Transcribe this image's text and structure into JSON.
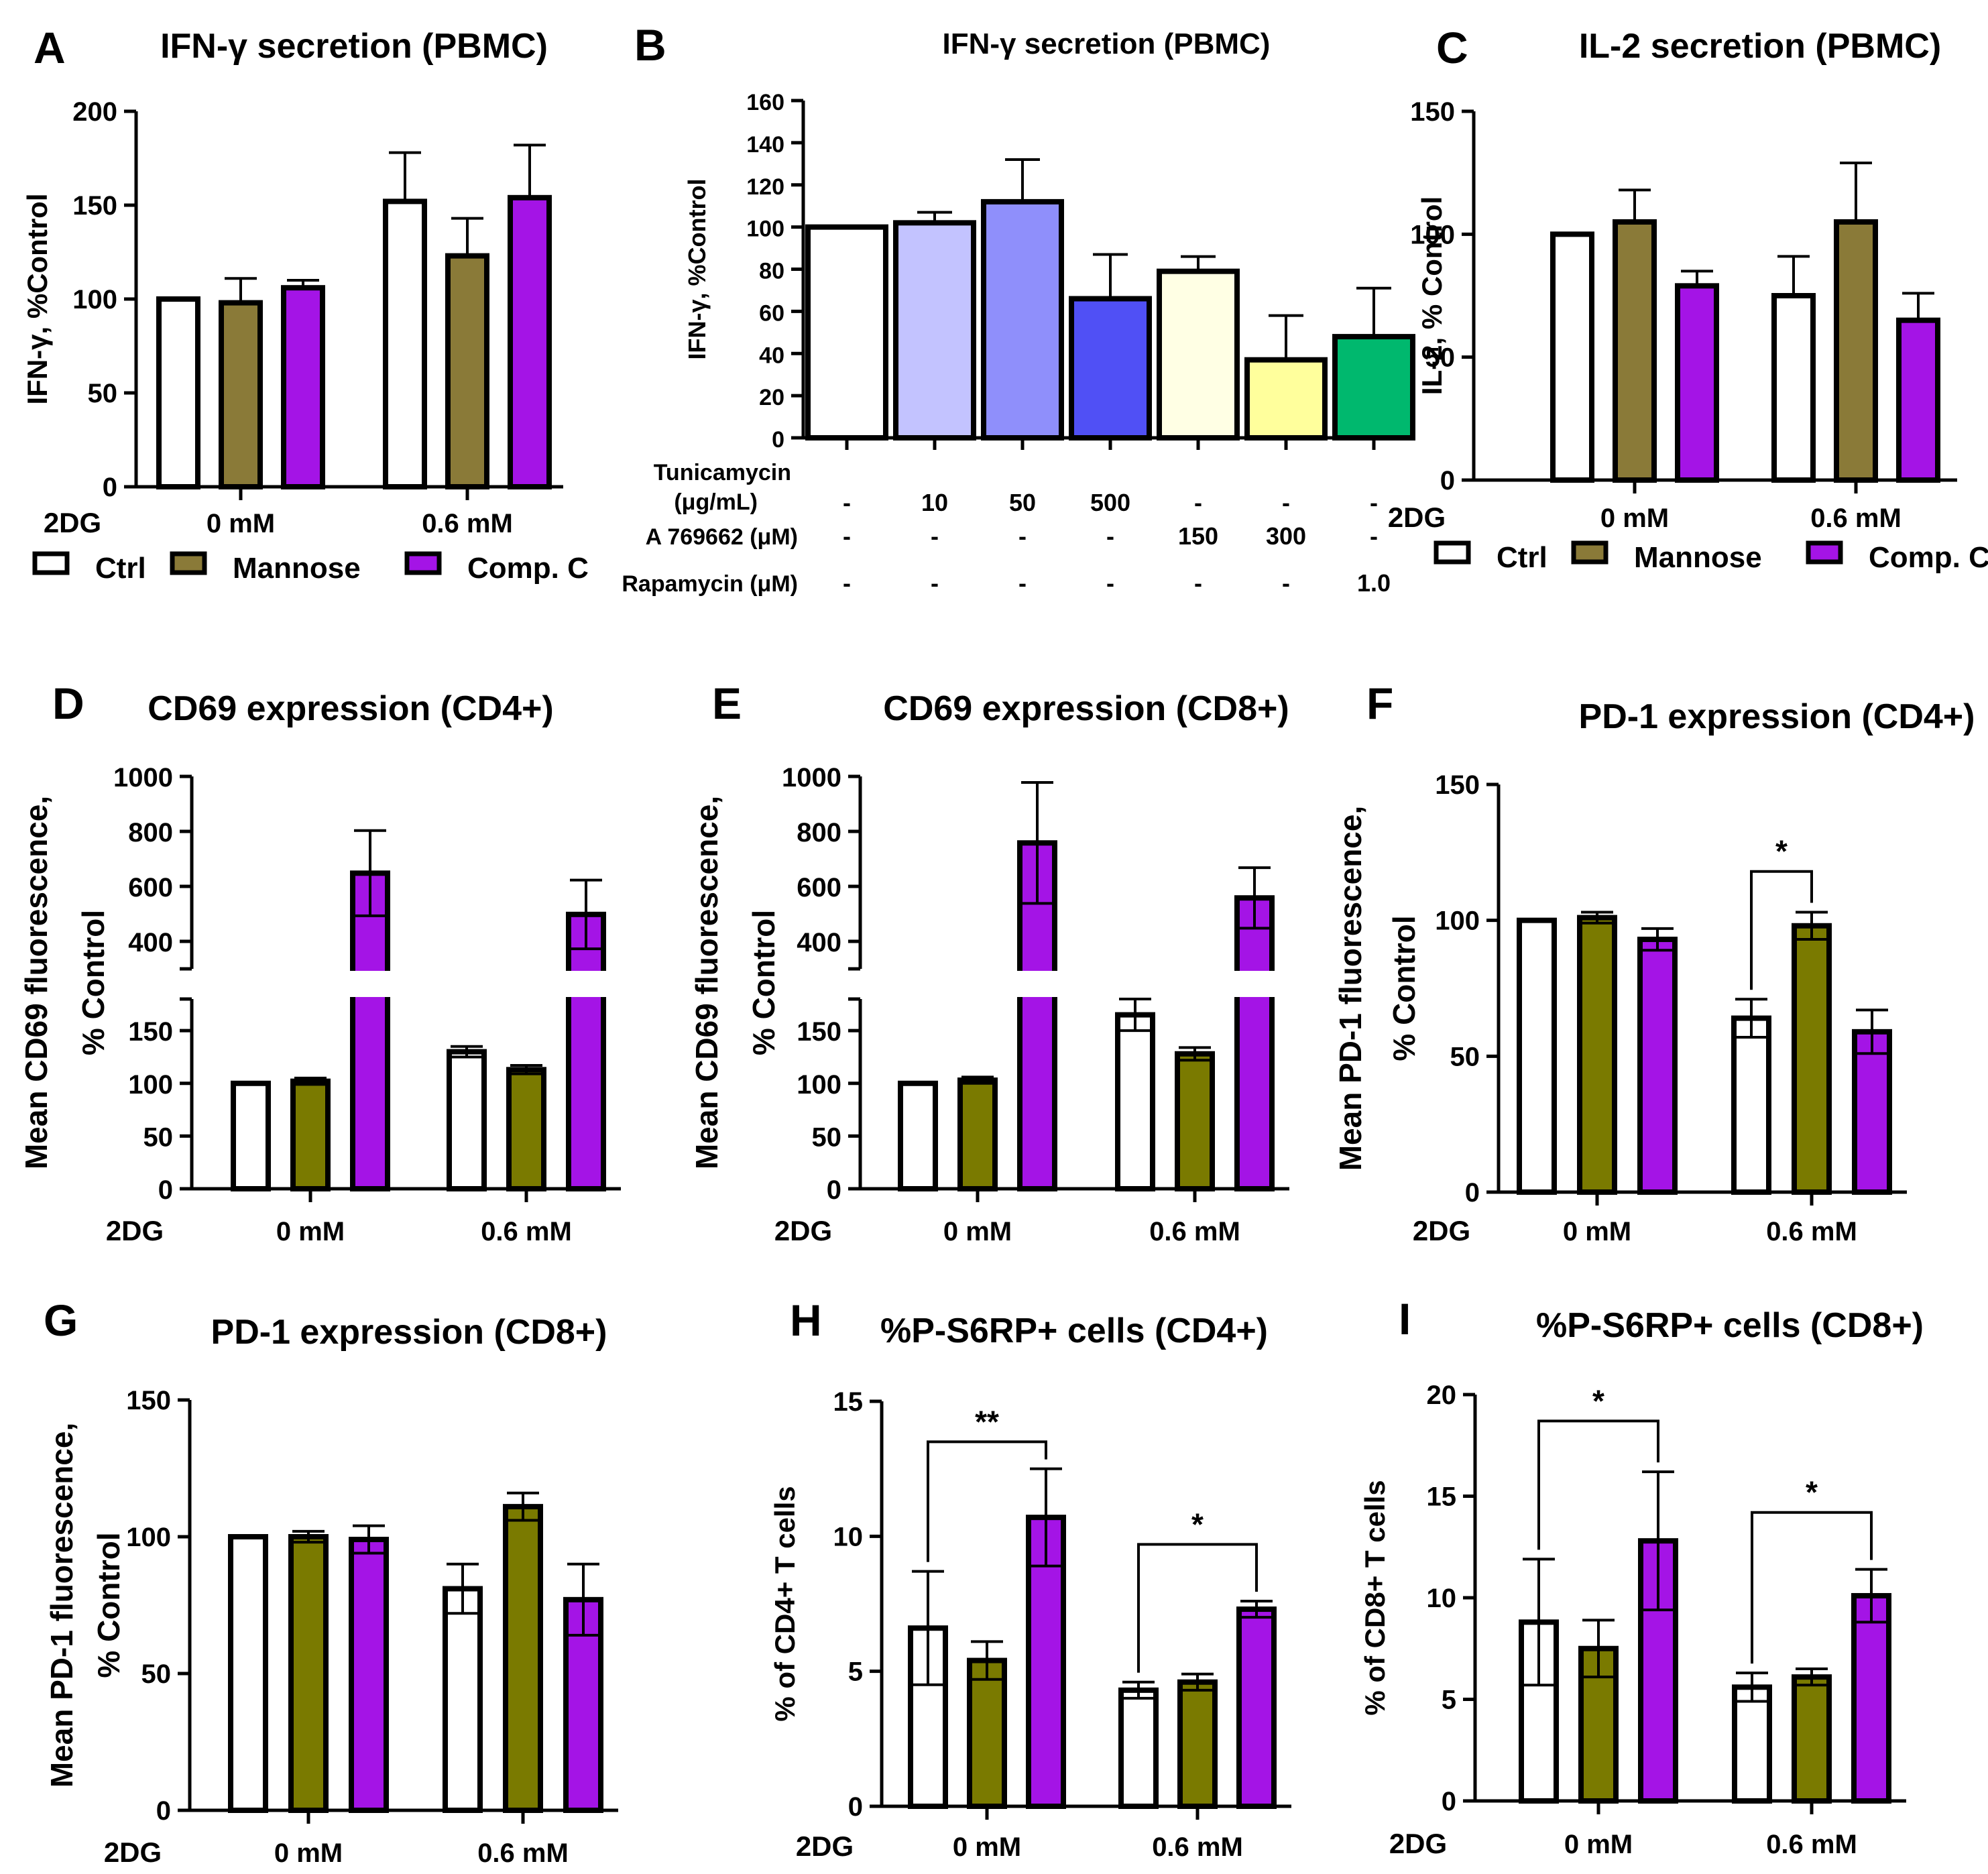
{
  "figure": {
    "x_prefix": "2DG"
  },
  "legend": {
    "entries": [
      "Ctrl",
      "Mannose",
      "Comp. C"
    ],
    "colors": [
      "#ffffff",
      "#8a7a38",
      "#a414e6"
    ]
  },
  "group_labels": [
    "0 mM",
    "0.6 mM"
  ],
  "treatments": [
    "Ctrl",
    "Mannose",
    "Comp. C"
  ],
  "chart_data": [
    {
      "letter": "A",
      "type": "bar",
      "title": "IFN-γ secretion (PBMC)",
      "ylabel": "IFN-γ, %Control",
      "ylim": [
        0,
        200
      ],
      "yticks": [
        0,
        50,
        100,
        150,
        200
      ],
      "colors": [
        "#ffffff",
        "#8a7a38",
        "#a414e6"
      ],
      "values": [
        [
          100,
          98,
          106
        ],
        [
          152,
          123,
          154
        ]
      ],
      "errors": [
        [
          0,
          13,
          4
        ],
        [
          26,
          20,
          28
        ]
      ],
      "sig": []
    },
    {
      "letter": "B",
      "type": "bar",
      "title": "IFN-γ secretion (PBMC)",
      "ylabel": "IFN-γ, %Control",
      "ylim": [
        0,
        160
      ],
      "yticks": [
        0,
        20,
        40,
        60,
        80,
        100,
        120,
        140,
        160
      ],
      "colors": [
        "#ffffff",
        "#c3c3ff",
        "#8f8ffb",
        "#5050f5",
        "#ffffe4",
        "#ffff9c",
        "#00b86e"
      ],
      "values": [
        100,
        102,
        112,
        66,
        79,
        37,
        48
      ],
      "errors": [
        0,
        5,
        20,
        21,
        7,
        21,
        23
      ],
      "table_rows": [
        {
          "label": "Tunicamycin (μg/mL)",
          "values": [
            "-",
            "10",
            "50",
            "500",
            "-",
            "-",
            "-"
          ]
        },
        {
          "label": "A 769662 (μM)",
          "values": [
            "-",
            "-",
            "-",
            "-",
            "150",
            "300",
            "-"
          ]
        },
        {
          "label": "Rapamycin (μM)",
          "values": [
            "-",
            "-",
            "-",
            "-",
            "-",
            "-",
            "1.0"
          ]
        }
      ]
    },
    {
      "letter": "C",
      "type": "bar",
      "title": "IL-2 secretion (PBMC)",
      "ylabel": "IL-2, % Control",
      "ylim": [
        0,
        150
      ],
      "yticks": [
        0,
        50,
        100,
        150
      ],
      "colors": [
        "#ffffff",
        "#8a7a38",
        "#a414e6"
      ],
      "values": [
        [
          100,
          105,
          79
        ],
        [
          75,
          105,
          65
        ]
      ],
      "errors": [
        [
          0,
          13,
          6
        ],
        [
          16,
          24,
          11
        ]
      ],
      "sig": []
    },
    {
      "letter": "D",
      "type": "bar",
      "title": "CD69 expression (CD4+)",
      "ylabel": [
        "Mean CD69 fluorescence,",
        "% Control"
      ],
      "axis_break": true,
      "lower_ylim": [
        0,
        180
      ],
      "upper_ylim": [
        300,
        1000
      ],
      "lower_yticks": [
        0,
        50,
        100,
        150
      ],
      "upper_yticks": [
        400,
        600,
        800,
        1000
      ],
      "colors": [
        "#ffffff",
        "#7a7a00",
        "#a414e6"
      ],
      "values": [
        [
          100,
          102,
          648
        ],
        [
          130,
          113,
          498
        ]
      ],
      "errors": [
        [
          0,
          3,
          155
        ],
        [
          5,
          4,
          125
        ]
      ],
      "sig": []
    },
    {
      "letter": "E",
      "type": "bar",
      "title": "CD69 expression (CD8+)",
      "ylabel": [
        "Mean CD69 fluorescence,",
        "% Control"
      ],
      "axis_break": true,
      "lower_ylim": [
        0,
        180
      ],
      "upper_ylim": [
        300,
        1000
      ],
      "lower_yticks": [
        0,
        50,
        100,
        150
      ],
      "upper_yticks": [
        400,
        600,
        800,
        1000
      ],
      "colors": [
        "#ffffff",
        "#7a7a00",
        "#a414e6"
      ],
      "values": [
        [
          100,
          103,
          758
        ],
        [
          165,
          128,
          558
        ]
      ],
      "errors": [
        [
          0,
          3,
          220
        ],
        [
          15,
          6,
          110
        ]
      ],
      "sig": []
    },
    {
      "letter": "F",
      "type": "bar",
      "title": "PD-1 expression (CD4+)",
      "ylabel": [
        "Mean PD-1 fluorescence,",
        "% Control"
      ],
      "ylim": [
        0,
        150
      ],
      "yticks": [
        0,
        50,
        100,
        150
      ],
      "colors": [
        "#ffffff",
        "#7a7a00",
        "#a414e6"
      ],
      "values": [
        [
          100,
          101,
          93
        ],
        [
          64,
          98,
          59
        ]
      ],
      "errors": [
        [
          0,
          2,
          4
        ],
        [
          7,
          5,
          8
        ]
      ],
      "sig": [
        {
          "group": 1,
          "from": 0,
          "to": 1,
          "label": "*",
          "y": 118
        }
      ]
    },
    {
      "letter": "G",
      "type": "bar",
      "title": "PD-1 expression (CD8+)",
      "ylabel": [
        "Mean PD-1 fluorescence,",
        "% Control"
      ],
      "ylim": [
        0,
        150
      ],
      "yticks": [
        0,
        50,
        100,
        150
      ],
      "colors": [
        "#ffffff",
        "#7a7a00",
        "#a414e6"
      ],
      "values": [
        [
          100,
          100,
          99
        ],
        [
          81,
          111,
          77
        ]
      ],
      "errors": [
        [
          0,
          2,
          5
        ],
        [
          9,
          5,
          13
        ]
      ],
      "sig": []
    },
    {
      "letter": "H",
      "type": "bar",
      "title": "%P-S6RP+ cells (CD4+)",
      "ylabel": "% of CD4+ T cells",
      "ylim": [
        0,
        15
      ],
      "yticks": [
        0,
        5,
        10,
        15
      ],
      "colors": [
        "#ffffff",
        "#7a7a00",
        "#a414e6"
      ],
      "values": [
        [
          6.6,
          5.4,
          10.7
        ],
        [
          4.3,
          4.6,
          7.3
        ]
      ],
      "errors": [
        [
          2.1,
          0.7,
          1.8
        ],
        [
          0.3,
          0.3,
          0.3
        ]
      ],
      "sig": [
        {
          "group": 0,
          "from": 0,
          "to": 2,
          "label": "**",
          "y": 13.5
        },
        {
          "group": 1,
          "from": 0,
          "to": 2,
          "label": "*",
          "y": 9.7
        }
      ]
    },
    {
      "letter": "I",
      "type": "bar",
      "title": "%P-S6RP+ cells (CD8+)",
      "ylabel": "% of CD8+ T cells",
      "ylim": [
        0,
        20
      ],
      "yticks": [
        0,
        5,
        10,
        15,
        20
      ],
      "colors": [
        "#ffffff",
        "#7a7a00",
        "#a414e6"
      ],
      "values": [
        [
          8.8,
          7.5,
          12.8
        ],
        [
          5.6,
          6.1,
          10.1
        ]
      ],
      "errors": [
        [
          3.1,
          1.4,
          3.4
        ],
        [
          0.7,
          0.4,
          1.3
        ]
      ],
      "sig": [
        {
          "group": 0,
          "from": 0,
          "to": 2,
          "label": "*",
          "y": 18.7
        },
        {
          "group": 1,
          "from": 0,
          "to": 2,
          "label": "*",
          "y": 14.2
        }
      ]
    }
  ]
}
